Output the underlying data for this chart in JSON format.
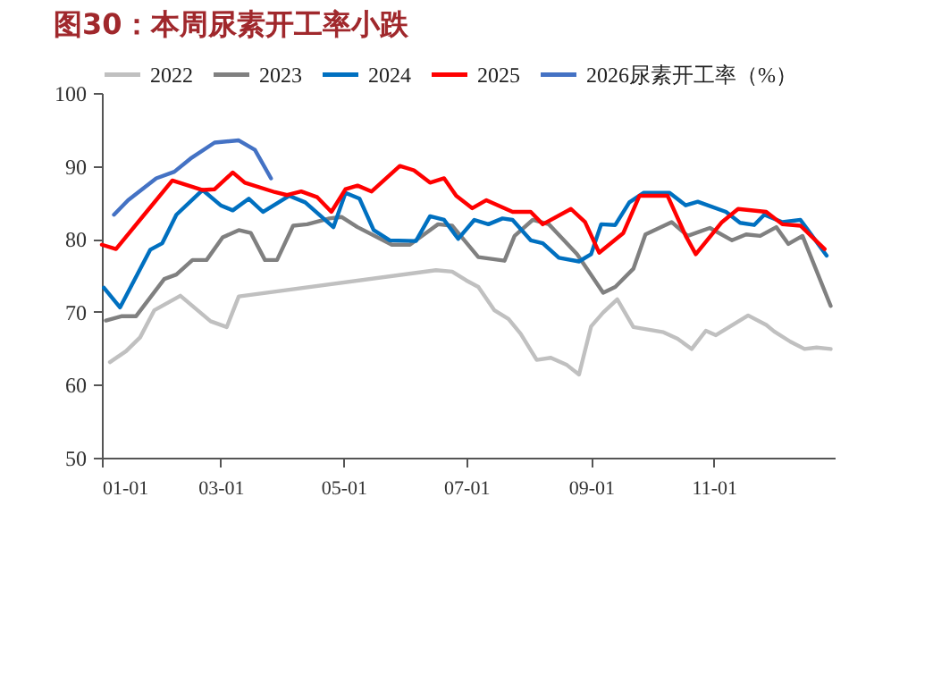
{
  "chart_data": {
    "type": "line",
    "title": "图30：本周尿素开工率小跌",
    "xlim": [
      "--01-01",
      "--12-31"
    ],
    "xticks": [
      {
        "value": "--01-01",
        "label": "01-01"
      },
      {
        "value": "--03-01",
        "label": "03-01"
      },
      {
        "value": "--05-01",
        "label": "05-01"
      },
      {
        "value": "--07-01",
        "label": "07-01"
      },
      {
        "value": "--09-01",
        "label": "09-01"
      },
      {
        "value": "--11-01",
        "label": "11-01"
      }
    ],
    "ylim": [
      50,
      100
    ],
    "yticks": [
      50,
      60,
      70,
      80,
      90,
      100
    ],
    "grid": false,
    "legend": "top",
    "line_style": "solid",
    "marker": "none",
    "series": [
      {
        "name": "2022",
        "color": "#c0c0c0",
        "x": [
          "--01-05",
          "--01-13",
          "--01-20",
          "--01-27",
          "--02-09",
          "--02-24",
          "--03-04",
          "--03-10",
          "--06-16",
          "--06-24",
          "--07-01",
          "--07-07",
          "--07-15",
          "--07-22",
          "--07-28",
          "--08-05",
          "--08-12",
          "--08-20",
          "--08-26",
          "--09-01",
          "--09-07",
          "--09-14",
          "--09-22",
          "--10-07",
          "--10-14",
          "--10-21",
          "--10-28",
          "--11-02",
          "--11-18",
          "--11-27",
          "--12-01",
          "--12-09",
          "--12-16",
          "--12-22",
          "--12-29"
        ],
        "values": [
          63.1,
          64.6,
          66.5,
          70.2,
          72.2,
          68.7,
          67.9,
          72.1,
          75.7,
          75.5,
          74.3,
          73.4,
          70.2,
          69.0,
          67.0,
          63.4,
          63.7,
          62.7,
          61.4,
          68.0,
          69.9,
          71.7,
          67.9,
          67.2,
          66.3,
          64.9,
          67.4,
          66.8,
          69.5,
          68.2,
          67.3,
          65.9,
          64.9,
          65.1,
          64.9
        ]
      },
      {
        "name": "2023",
        "color": "#808080",
        "x": [
          "--01-03",
          "--01-11",
          "--01-18",
          "--02-01",
          "--02-07",
          "--02-15",
          "--02-22",
          "--03-02",
          "--03-10",
          "--03-16",
          "--03-23",
          "--03-29",
          "--04-06",
          "--04-13",
          "--04-24",
          "--04-30",
          "--05-08",
          "--05-25",
          "--06-03",
          "--06-17",
          "--06-24",
          "--07-07",
          "--07-20",
          "--07-25",
          "--08-03",
          "--08-11",
          "--08-25",
          "--09-07",
          "--09-13",
          "--09-22",
          "--09-28",
          "--10-11",
          "--10-19",
          "--10-30",
          "--11-10",
          "--11-17",
          "--11-24",
          "--12-02",
          "--12-08",
          "--12-15",
          "--12-29"
        ],
        "values": [
          68.8,
          69.4,
          69.4,
          74.5,
          75.1,
          77.1,
          77.1,
          80.2,
          81.2,
          80.8,
          77.1,
          77.1,
          81.8,
          82.0,
          82.8,
          83.0,
          81.6,
          79.2,
          79.2,
          82.0,
          81.8,
          77.5,
          77.0,
          80.4,
          82.6,
          82.0,
          77.9,
          72.6,
          73.4,
          75.9,
          80.6,
          82.3,
          80.4,
          81.5,
          79.8,
          80.6,
          80.4,
          81.6,
          79.3,
          80.4,
          70.8
        ]
      },
      {
        "name": "2024",
        "color": "#0070c0",
        "x": [
          "--01-02",
          "--01-10",
          "--01-25",
          "--01-31",
          "--02-07",
          "--02-20",
          "--03-01",
          "--03-07",
          "--03-15",
          "--03-22",
          "--04-04",
          "--04-12",
          "--04-26",
          "--05-02",
          "--05-09",
          "--05-16",
          "--05-24",
          "--06-06",
          "--06-13",
          "--06-20",
          "--06-27",
          "--07-05",
          "--07-12",
          "--07-19",
          "--07-24",
          "--08-02",
          "--08-08",
          "--08-16",
          "--08-26",
          "--09-01",
          "--09-06",
          "--09-13",
          "--09-20",
          "--09-27",
          "--10-10",
          "--10-18",
          "--10-24",
          "--11-07",
          "--11-14",
          "--11-21",
          "--11-26",
          "--12-05",
          "--12-14",
          "--12-27"
        ],
        "values": [
          73.3,
          70.6,
          78.5,
          79.4,
          83.3,
          86.7,
          84.6,
          83.9,
          85.5,
          83.7,
          85.9,
          85.0,
          81.6,
          86.3,
          85.5,
          81.2,
          79.8,
          79.7,
          83.1,
          82.6,
          80.0,
          82.6,
          82.0,
          82.8,
          82.6,
          79.8,
          79.4,
          77.4,
          76.9,
          77.9,
          82.0,
          81.9,
          85.0,
          86.3,
          86.3,
          84.6,
          85.1,
          83.7,
          82.2,
          81.9,
          83.3,
          82.3,
          82.6,
          77.7
        ]
      },
      {
        "name": "2025",
        "color": "#ff0000",
        "x": [
          "--01-01",
          "--01-08",
          "--01-22",
          "--02-05",
          "--02-20",
          "--02-26",
          "--03-07",
          "--03-13",
          "--03-28",
          "--04-03",
          "--04-10",
          "--04-18",
          "--04-25",
          "--05-02",
          "--05-08",
          "--05-15",
          "--05-29",
          "--06-05",
          "--06-13",
          "--06-20",
          "--06-26",
          "--07-04",
          "--07-11",
          "--07-24",
          "--08-02",
          "--08-08",
          "--08-22",
          "--08-29",
          "--09-05",
          "--09-17",
          "--09-25",
          "--10-09",
          "--10-18",
          "--10-23",
          "--11-05",
          "--11-13",
          "--11-27",
          "--12-05",
          "--12-14",
          "--12-26"
        ],
        "values": [
          79.2,
          78.6,
          83.3,
          88.0,
          86.7,
          86.8,
          89.1,
          87.7,
          86.4,
          86.0,
          86.5,
          85.7,
          83.7,
          86.8,
          87.3,
          86.5,
          90.0,
          89.4,
          87.7,
          88.3,
          85.9,
          84.2,
          85.3,
          83.7,
          83.7,
          82.0,
          84.1,
          82.3,
          78.1,
          80.8,
          85.9,
          85.9,
          80.4,
          77.9,
          82.3,
          84.1,
          83.7,
          82.0,
          81.8,
          78.6
        ]
      },
      {
        "name": "2026尿素开工率（%）",
        "color": "#4472c4",
        "x": [
          "--01-07",
          "--01-14",
          "--01-28",
          "--02-06",
          "--02-14",
          "--02-26",
          "--03-10",
          "--03-18",
          "--03-26"
        ],
        "values": [
          83.3,
          85.3,
          88.3,
          89.2,
          91.0,
          93.2,
          93.5,
          92.2,
          88.3
        ]
      }
    ]
  }
}
